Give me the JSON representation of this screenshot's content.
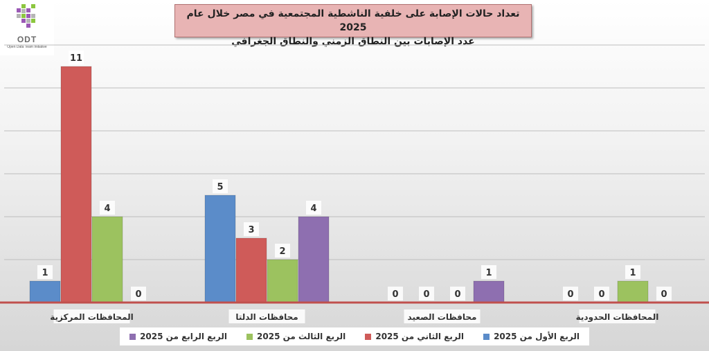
{
  "logo": {
    "text": "ODT",
    "subtitle": "Open Data Team Initiative"
  },
  "title": {
    "line1": "تعداد حالات الإصابة على خلفية الناشطية المجتمعية في مصر خلال عام 2025",
    "line2": "عدد الإصابات بين النطاق الزمني والنطاق الجغرافي"
  },
  "chart_data": {
    "type": "bar",
    "title": "تعداد حالات الإصابة على خلفية الناشطية المجتمعية في مصر خلال عام 2025",
    "subtitle": "عدد الإصابات بين النطاق الزمني والنطاق الجغرافي",
    "categories": [
      "المحافظات المركزية",
      "محافظات الدلتا",
      "محافظات الصعيد",
      "المحافظات الحدودية"
    ],
    "series": [
      {
        "name": "الربع الأول من 2025",
        "color": "#5b8cc9",
        "values": [
          1,
          5,
          0,
          0
        ]
      },
      {
        "name": "الربع الثاني من 2025",
        "color": "#cf5b59",
        "values": [
          11,
          3,
          0,
          0
        ]
      },
      {
        "name": "الربع الثالث من 2025",
        "color": "#9cc25f",
        "values": [
          4,
          2,
          0,
          1
        ]
      },
      {
        "name": "الربع الرابع من 2025",
        "color": "#8e6fb0",
        "values": [
          0,
          4,
          1,
          0
        ]
      }
    ],
    "ylim": [
      0,
      11
    ],
    "grid": true,
    "legend": "bottom",
    "baseline_color": "#c0504d"
  }
}
